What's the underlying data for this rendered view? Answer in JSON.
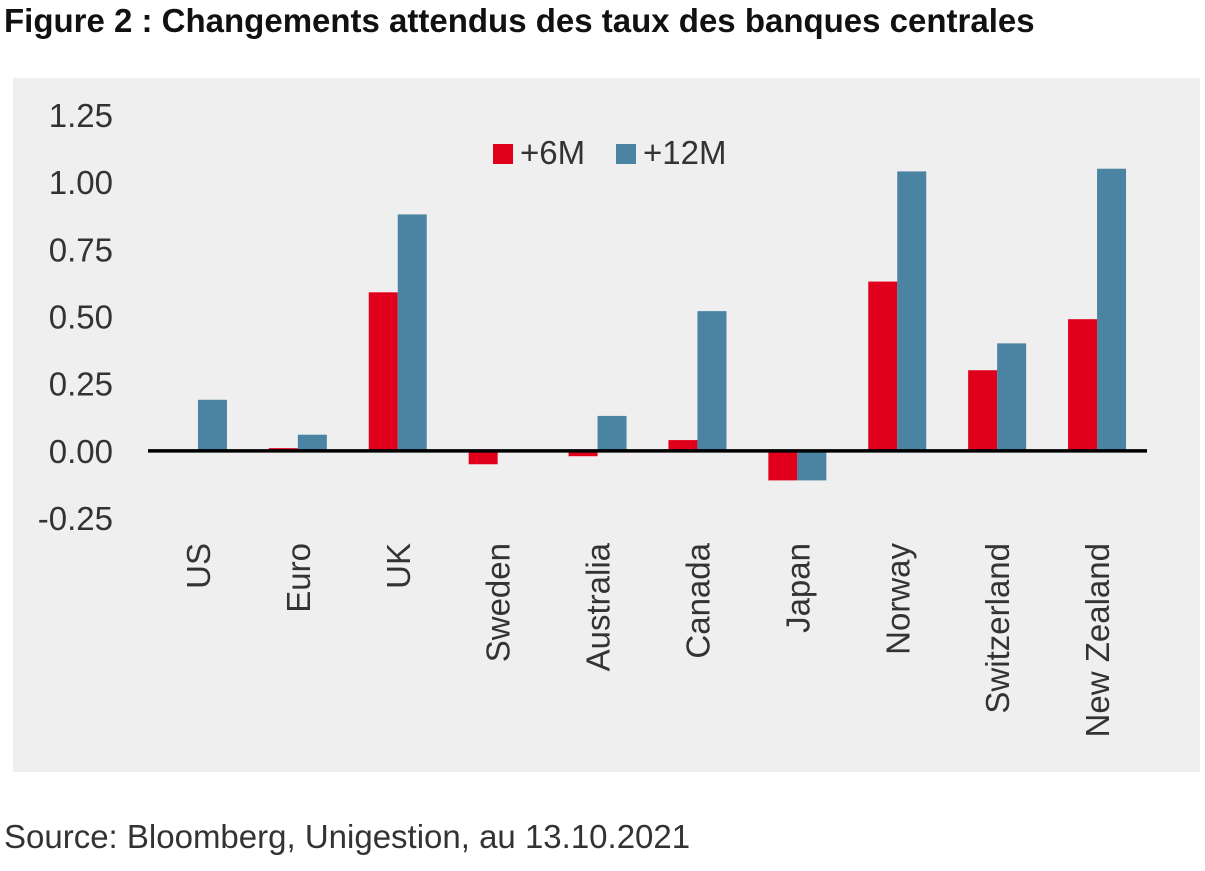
{
  "figure": {
    "title": "Figure 2 : Changements attendus des taux des banques centrales",
    "source": "Source: Bloomberg, Unigestion, au 13.10.2021"
  },
  "chart_data": {
    "type": "bar",
    "title": "",
    "xlabel": "",
    "ylabel": "",
    "categories": [
      "US",
      "Euro",
      "UK",
      "Sweden",
      "Australia",
      "Canada",
      "Japan",
      "Norway",
      "Switzerland",
      "New Zealand"
    ],
    "series": [
      {
        "name": "+6M",
        "color": "#e0001b",
        "values": [
          0.0,
          0.01,
          0.59,
          -0.05,
          -0.02,
          0.04,
          -0.11,
          0.63,
          0.3,
          0.49
        ]
      },
      {
        "name": "+12M",
        "color": "#4a84a2",
        "values": [
          0.19,
          0.06,
          0.88,
          0.0,
          0.13,
          0.52,
          -0.11,
          1.04,
          0.4,
          1.05
        ]
      }
    ],
    "ylim": [
      -0.25,
      1.25
    ],
    "yticks": [
      "1.25",
      "1.00",
      "0.75",
      "0.50",
      "0.25",
      "0.00",
      "-0.25"
    ],
    "grid": false,
    "legend": "top-center",
    "background": "#efefef"
  }
}
